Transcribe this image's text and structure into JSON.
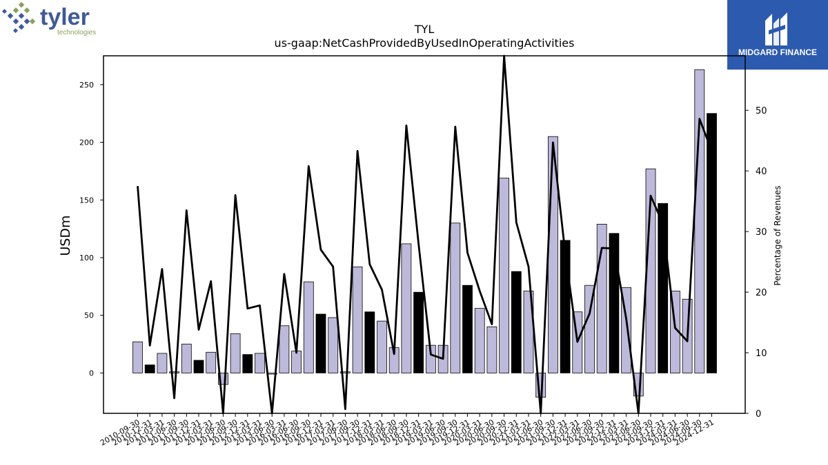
{
  "logos": {
    "left": {
      "name": "tyler",
      "tagline": "technologies",
      "color": "#3e5a98",
      "accent": "#8aa05a"
    },
    "right": {
      "name": "MIDGARD FINANCE",
      "background": "#2c5aae"
    }
  },
  "chart_data": {
    "type": "bar",
    "title": "TYL",
    "subtitle": "us-gaap:NetCashProvidedByUsedInOperatingActivities",
    "ylabel": "USDm",
    "y2label": "Percentage of Revenues",
    "ylim": [
      -35,
      275
    ],
    "y2lim": [
      0,
      59
    ],
    "yticks": [
      0,
      50,
      100,
      150,
      200,
      250
    ],
    "y2ticks": [
      0,
      10,
      20,
      30,
      40,
      50
    ],
    "bar_colors": {
      "quarter": "#bcb9da",
      "year_end": "#000000"
    },
    "line_color": "#000000",
    "categories": [
      "2010-09-30",
      "2010-12-31",
      "2011-03-31",
      "2011-06-30",
      "2011-09-30",
      "2011-12-31",
      "2012-03-31",
      "2012-06-30",
      "2012-09-30",
      "2012-12-31",
      "2013-03-31",
      "2013-06-30",
      "2016-03-31",
      "2016-06-30",
      "2016-09-30",
      "2016-12-31",
      "2017-03-31",
      "2017-06-30",
      "2017-09-30",
      "2017-12-31",
      "2018-03-31",
      "2018-06-30",
      "2018-09-30",
      "2018-12-31",
      "2019-03-31",
      "2019-06-30",
      "2019-09-30",
      "2019-12-31",
      "2020-03-31",
      "2020-06-30",
      "2020-09-30",
      "2020-12-31",
      "2021-03-31",
      "2021-06-30",
      "2021-09-30",
      "2021-12-31",
      "2022-03-31",
      "2022-06-30",
      "2022-09-30",
      "2022-12-31",
      "2023-03-31",
      "2023-06-30",
      "2023-09-30",
      "2023-12-31",
      "2024-03-31",
      "2024-06-30",
      "2024-09-30",
      "2024-12-31"
    ],
    "values": [
      27,
      7,
      17,
      1,
      25,
      11,
      18,
      -10,
      34,
      16,
      17,
      -1,
      41,
      19,
      79,
      51,
      48,
      1,
      92,
      53,
      45,
      22,
      112,
      70,
      24,
      24,
      130,
      76,
      56,
      40,
      169,
      88,
      71,
      -21,
      205,
      115,
      53,
      76,
      129,
      121,
      74,
      -20,
      177,
      147,
      71,
      64,
      263,
      225
    ],
    "year_end": [
      false,
      true,
      false,
      false,
      false,
      true,
      false,
      false,
      false,
      true,
      false,
      false,
      false,
      false,
      false,
      true,
      false,
      false,
      false,
      true,
      false,
      false,
      false,
      true,
      false,
      false,
      false,
      true,
      false,
      false,
      false,
      true,
      false,
      false,
      false,
      true,
      false,
      false,
      false,
      true,
      false,
      false,
      false,
      true,
      false,
      false,
      false,
      true
    ],
    "pct_of_revenues": [
      37.5,
      11.2,
      23.8,
      2.5,
      33.5,
      13.8,
      21.8,
      -2,
      36,
      17.3,
      17.8,
      0,
      23,
      10,
      40.8,
      27,
      24.2,
      0.7,
      43.3,
      24.6,
      20.4,
      9.8,
      47.5,
      28,
      9.7,
      9,
      47.3,
      26.5,
      20.2,
      14.7,
      59.5,
      31.5,
      24.2,
      -2,
      44.7,
      26.5,
      11.8,
      16.5,
      27.3,
      27.2,
      15.6,
      -2,
      35.9,
      31.3,
      14.1,
      11.9,
      48.6,
      43.3
    ]
  }
}
